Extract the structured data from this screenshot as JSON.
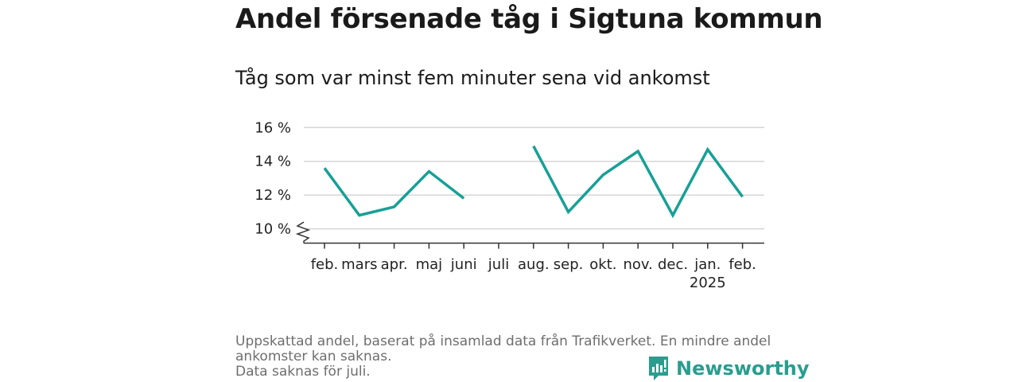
{
  "title": "Andel försenade tåg i Sigtuna kommun",
  "subtitle": "Tåg som var minst fem minuter sena vid ankomst",
  "footer": {
    "line1": "Uppskattad andel, baserat på insamlad data från Trafikverket. En mindre andel ankomster kan saknas.",
    "line2": "Data saknas för juli."
  },
  "brand": {
    "name": "Newsworthy",
    "icon": "newsworthy-logo-icon",
    "color": "#2a9d8f"
  },
  "chart_data": {
    "type": "line",
    "categories": [
      "feb.",
      "mars",
      "apr.",
      "maj",
      "juni",
      "juli",
      "aug.",
      "sep.",
      "okt.",
      "nov.",
      "dec.",
      "jan.",
      "feb."
    ],
    "year_label": {
      "text": "2025",
      "category_index": 11
    },
    "series": [
      {
        "values": [
          13.6,
          10.8,
          11.3,
          13.4,
          11.8,
          null,
          14.9,
          11.0,
          13.2,
          14.6,
          10.8,
          14.7,
          11.9
        ],
        "color": "#17a096"
      }
    ],
    "yticks": [
      10,
      12,
      14,
      16
    ],
    "ytick_labels": [
      "10 %",
      "12 %",
      "14 %",
      "16 %"
    ],
    "ylim": [
      9.2,
      16.5
    ],
    "y_axis_break": true,
    "grid": true
  }
}
